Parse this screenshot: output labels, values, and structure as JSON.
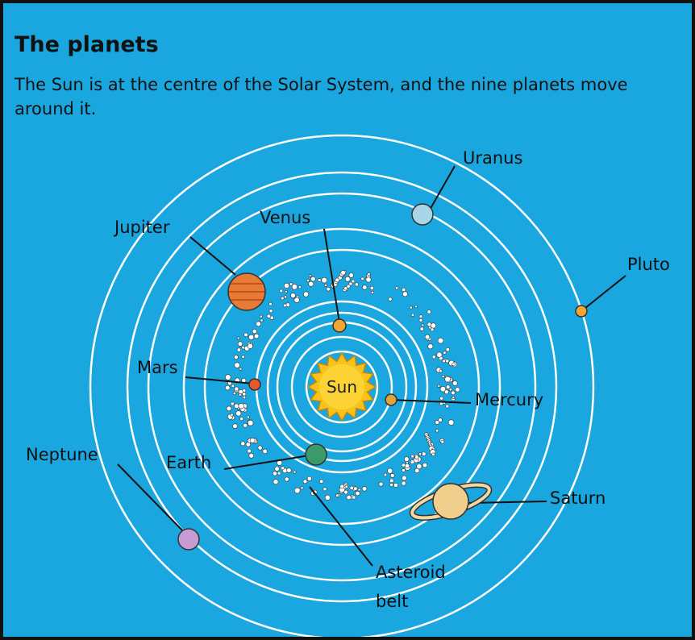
{
  "header": {
    "title": "The planets",
    "description": "The Sun is at the centre of the Solar System, and the nine planets move around it."
  },
  "labels": {
    "sun": "Sun",
    "mercury": "Mercury",
    "venus": "Venus",
    "earth": "Earth",
    "mars": "Mars",
    "asteroid_belt": "Asteroid belt",
    "jupiter": "Jupiter",
    "saturn": "Saturn",
    "uranus": "Uranus",
    "neptune": "Neptune",
    "pluto": "Pluto"
  }
}
